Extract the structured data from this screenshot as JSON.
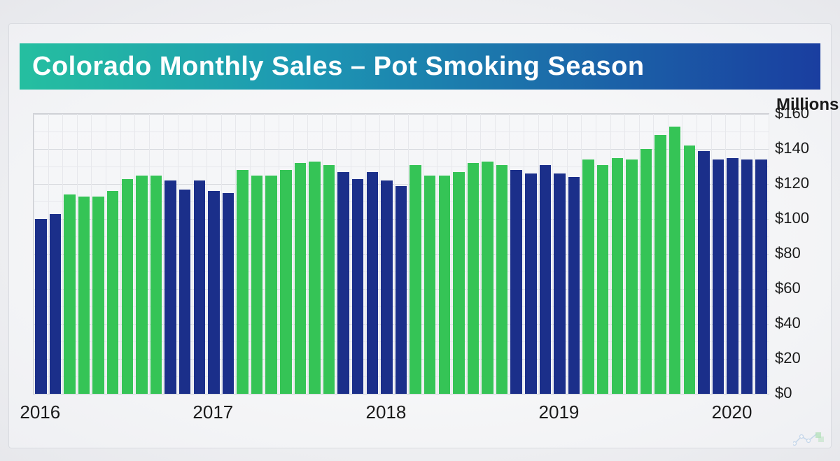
{
  "title": "Colorado Monthly Sales – Pot Smoking Season",
  "chart": {
    "type": "bar",
    "y_axis_title": "Millions",
    "ylim": [
      0,
      160
    ],
    "ytick_step": 20,
    "ytick_prefix": "$",
    "background_gradient": [
      "#f6f7f9",
      "#f1f2f5"
    ],
    "border_color": "#c9cbd0",
    "grid_color_major": "#d7d9de",
    "grid_color_minor": "#e7e8ec",
    "label_fontsize": 22,
    "title_fontsize": 38,
    "title_text_color": "#ffffff",
    "title_bg_gradient": [
      "#25bfa0",
      "#1d98b3",
      "#1a3ea0"
    ],
    "color_blue": "#1b2f8a",
    "color_green": "#35c456",
    "bar_rel_width": 0.8,
    "x_labels": [
      {
        "label": "2016",
        "position_index": 0
      },
      {
        "label": "2017",
        "position_index": 12
      },
      {
        "label": "2018",
        "position_index": 24
      },
      {
        "label": "2019",
        "position_index": 36
      },
      {
        "label": "2020",
        "position_index": 48
      }
    ],
    "bars": [
      {
        "value": 100,
        "series": "blue"
      },
      {
        "value": 103,
        "series": "blue"
      },
      {
        "value": 114,
        "series": "green"
      },
      {
        "value": 113,
        "series": "green"
      },
      {
        "value": 113,
        "series": "green"
      },
      {
        "value": 116,
        "series": "green"
      },
      {
        "value": 123,
        "series": "green"
      },
      {
        "value": 125,
        "series": "green"
      },
      {
        "value": 125,
        "series": "green"
      },
      {
        "value": 122,
        "series": "blue"
      },
      {
        "value": 117,
        "series": "blue"
      },
      {
        "value": 122,
        "series": "blue"
      },
      {
        "value": 116,
        "series": "blue"
      },
      {
        "value": 115,
        "series": "blue"
      },
      {
        "value": 128,
        "series": "green"
      },
      {
        "value": 125,
        "series": "green"
      },
      {
        "value": 125,
        "series": "green"
      },
      {
        "value": 128,
        "series": "green"
      },
      {
        "value": 132,
        "series": "green"
      },
      {
        "value": 133,
        "series": "green"
      },
      {
        "value": 131,
        "series": "green"
      },
      {
        "value": 127,
        "series": "blue"
      },
      {
        "value": 123,
        "series": "blue"
      },
      {
        "value": 127,
        "series": "blue"
      },
      {
        "value": 122,
        "series": "blue"
      },
      {
        "value": 119,
        "series": "blue"
      },
      {
        "value": 131,
        "series": "green"
      },
      {
        "value": 125,
        "series": "green"
      },
      {
        "value": 125,
        "series": "green"
      },
      {
        "value": 127,
        "series": "green"
      },
      {
        "value": 132,
        "series": "green"
      },
      {
        "value": 133,
        "series": "green"
      },
      {
        "value": 131,
        "series": "green"
      },
      {
        "value": 128,
        "series": "blue"
      },
      {
        "value": 126,
        "series": "blue"
      },
      {
        "value": 131,
        "series": "blue"
      },
      {
        "value": 126,
        "series": "blue"
      },
      {
        "value": 124,
        "series": "blue"
      },
      {
        "value": 134,
        "series": "green"
      },
      {
        "value": 131,
        "series": "green"
      },
      {
        "value": 135,
        "series": "green"
      },
      {
        "value": 134,
        "series": "green"
      },
      {
        "value": 140,
        "series": "green"
      },
      {
        "value": 148,
        "series": "green"
      },
      {
        "value": 153,
        "series": "green"
      },
      {
        "value": 142,
        "series": "green"
      },
      {
        "value": 139,
        "series": "blue"
      },
      {
        "value": 134,
        "series": "blue"
      },
      {
        "value": 135,
        "series": "blue"
      },
      {
        "value": 134,
        "series": "blue"
      },
      {
        "value": 134,
        "series": "blue"
      }
    ]
  }
}
